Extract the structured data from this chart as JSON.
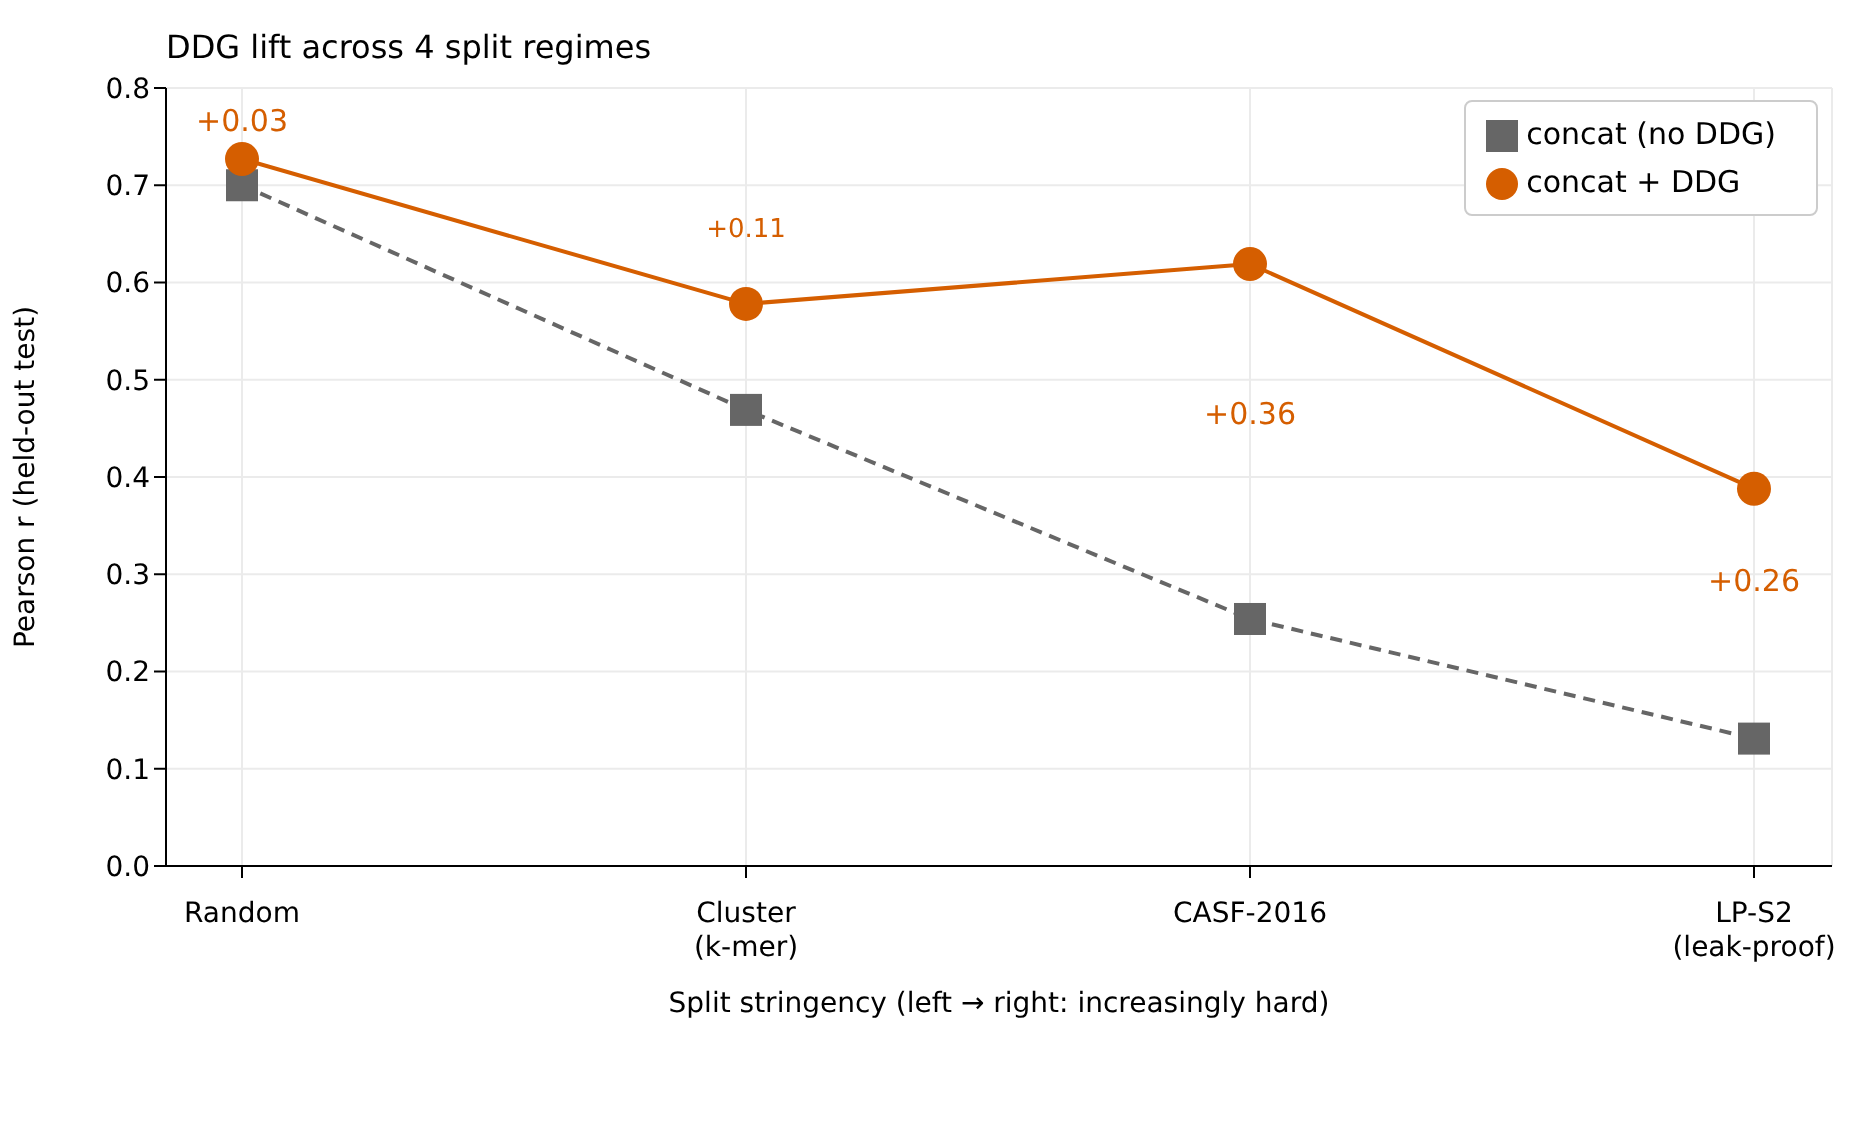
{
  "chart_data": {
    "type": "line",
    "title": "DDG lift across 4 split regimes",
    "xlabel": "Split stringency  (left → right: increasingly hard)",
    "ylabel": "Pearson r (held-out test)",
    "categories": [
      "Random",
      "Cluster\n(k-mer)",
      "CASF-2016",
      "LP-S2\n(leak-proof)"
    ],
    "series": [
      {
        "name": "concat (no DDG)",
        "color": "#666666",
        "values": [
          0.7,
          0.469,
          0.254,
          0.131
        ],
        "marker": "square",
        "line_style": "dashed"
      },
      {
        "name": "concat + DDG",
        "color": "#d55e00",
        "values": [
          0.727,
          0.578,
          0.619,
          0.388
        ],
        "marker": "circle",
        "line_style": "solid"
      }
    ],
    "annotations": [
      "+0.03",
      "+0.11",
      "+0.36",
      "+0.26"
    ],
    "ylim": [
      0,
      0.8
    ],
    "yticks": [
      {
        "value": 0,
        "label": "0.0"
      },
      0.1,
      0.2,
      0.3,
      0.4,
      0.5,
      0.6,
      0.7,
      0.8
    ],
    "grid": true,
    "legend": "top right"
  }
}
